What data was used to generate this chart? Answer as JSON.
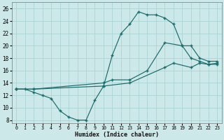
{
  "xlabel": "Humidex (Indice chaleur)",
  "xlim": [
    -0.5,
    23.5
  ],
  "ylim": [
    7.5,
    27.0
  ],
  "xticks": [
    0,
    1,
    2,
    3,
    4,
    5,
    6,
    7,
    8,
    9,
    10,
    11,
    12,
    13,
    14,
    15,
    16,
    17,
    18,
    19,
    20,
    21,
    22,
    23
  ],
  "yticks": [
    8,
    10,
    12,
    14,
    16,
    18,
    20,
    22,
    24,
    26
  ],
  "bg_color": "#cce8e8",
  "grid_color": "#aad4d4",
  "line_color": "#1a6b6b",
  "line1_x": [
    0,
    1,
    2,
    3,
    4,
    5,
    6,
    7,
    8,
    9,
    10,
    11,
    12,
    13,
    14,
    15,
    16,
    17,
    18,
    19,
    20,
    21,
    22,
    23
  ],
  "line1_y": [
    13,
    13,
    12.5,
    12,
    11.5,
    9.5,
    8.5,
    8,
    8,
    11.2,
    13.5,
    18.5,
    22.0,
    23.5,
    25.5,
    25.0,
    25.0,
    24.5,
    23.5,
    20.0,
    18.0,
    17.5,
    17.0,
    17.0
  ],
  "line2_x": [
    0,
    2,
    10,
    11,
    13,
    15,
    17,
    19,
    20,
    21,
    22,
    23
  ],
  "line2_y": [
    13,
    13,
    14.0,
    14.5,
    14.5,
    16.0,
    20.5,
    20.0,
    20.0,
    18.0,
    17.5,
    17.5
  ],
  "line3_x": [
    0,
    2,
    10,
    13,
    17,
    18,
    20,
    21,
    22,
    23
  ],
  "line3_y": [
    13,
    13,
    13.5,
    14.0,
    16.5,
    17.2,
    16.5,
    17.2,
    17.0,
    17.2
  ]
}
